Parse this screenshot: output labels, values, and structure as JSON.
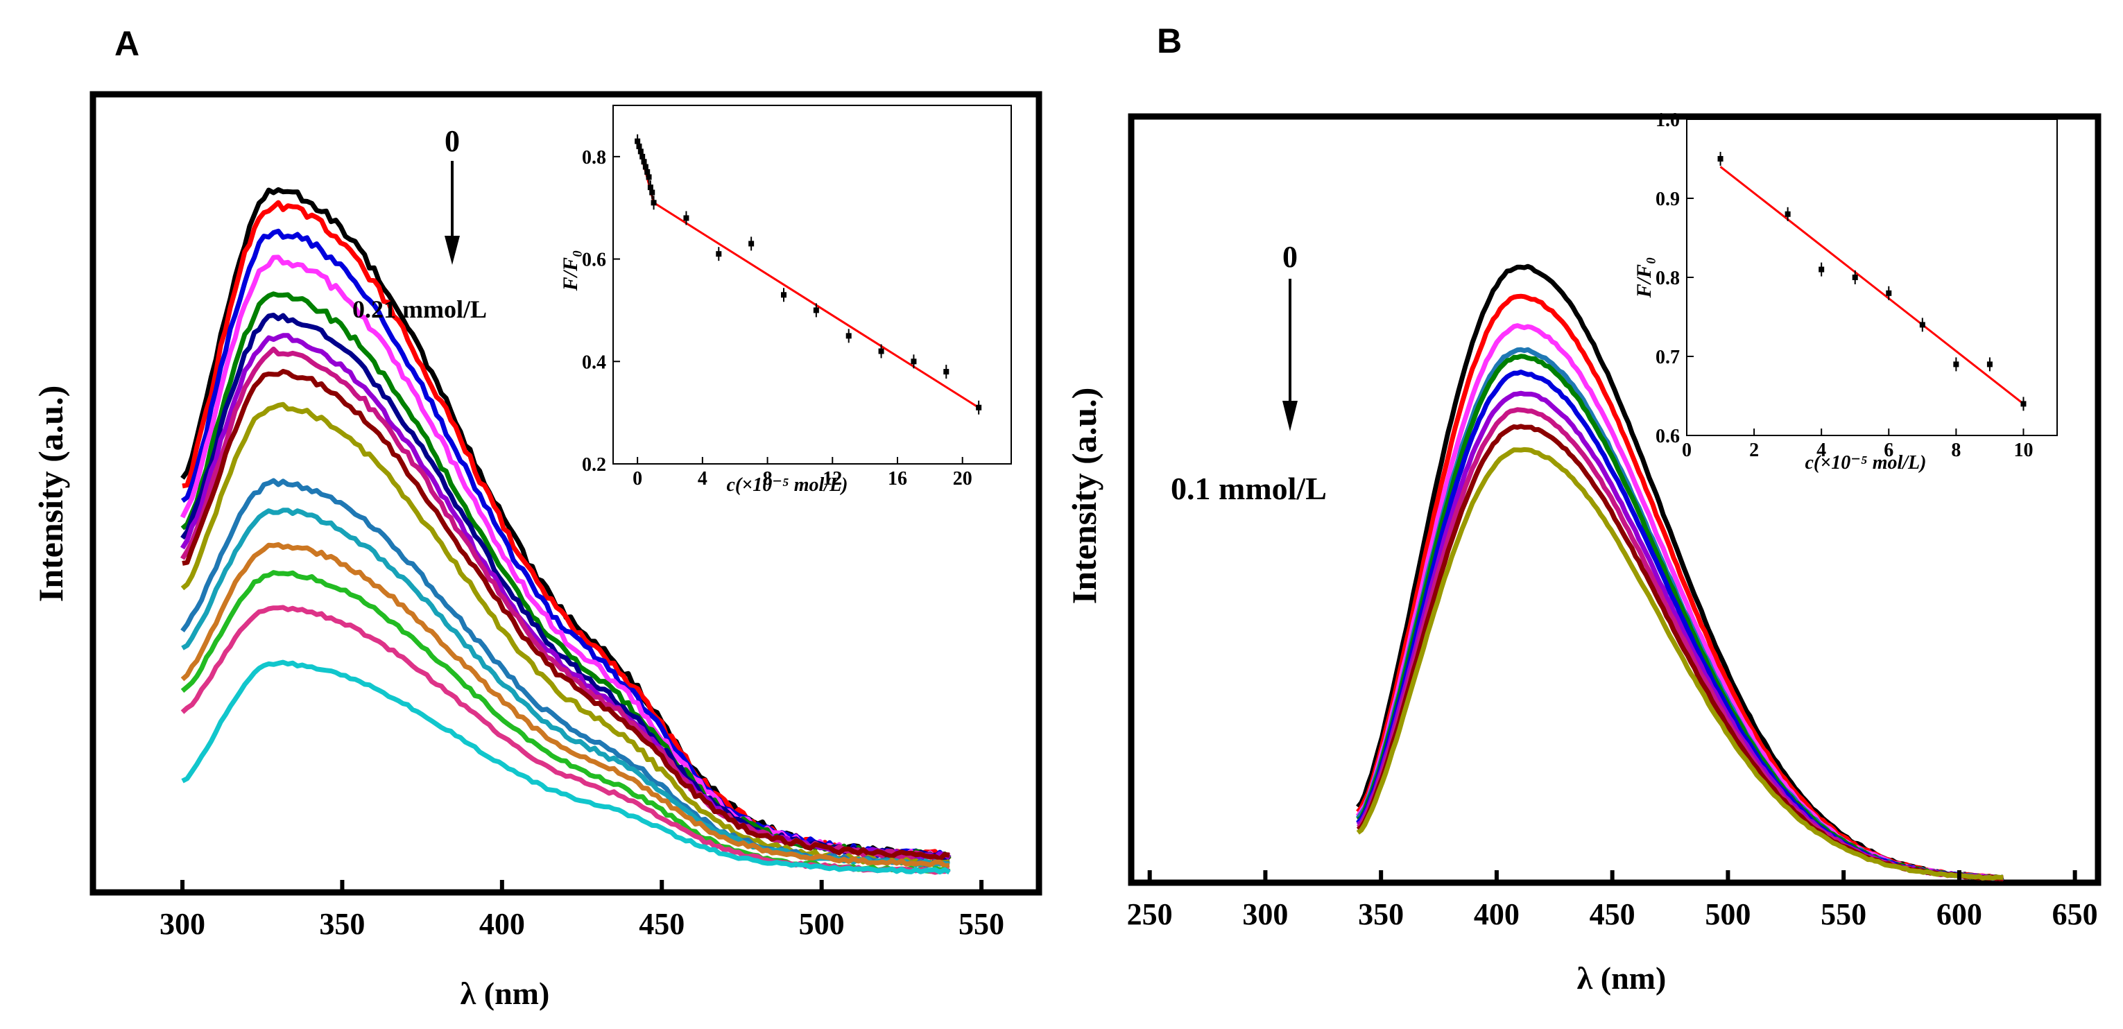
{
  "figure": {
    "panel_a_letter": "A",
    "panel_b_letter": "B"
  },
  "chart_data": [
    {
      "id": "A-main",
      "type": "line",
      "xlabel": "λ (nm)",
      "ylabel": "Intensity (a.u.)",
      "xlim": [
        272,
        568
      ],
      "ylim": [
        0,
        1.15
      ],
      "xticks": [
        300,
        350,
        400,
        450,
        500,
        550
      ],
      "yticks_visible": false,
      "annotation_top": "0",
      "annotation_bottom": "0.21 mmol/L",
      "x_range": [
        300,
        540
      ],
      "peak_x": 329,
      "series_colors": [
        "#000000",
        "#ff0000",
        "#0000dd",
        "#ff33ff",
        "#008000",
        "#00008b",
        "#9400d3",
        "#c71585",
        "#8b0000",
        "#9a9a00",
        "#1f78b4",
        "#17a2b8",
        "#cc7722",
        "#22bb22",
        "#dd3388",
        "#11c6cc"
      ],
      "series": [
        {
          "name": "c0",
          "start": 0.6,
          "peak": 1.01,
          "end": 0.05
        },
        {
          "name": "c1",
          "start": 0.58,
          "peak": 0.99,
          "end": 0.05
        },
        {
          "name": "c2",
          "start": 0.56,
          "peak": 0.95,
          "end": 0.05
        },
        {
          "name": "c3",
          "start": 0.54,
          "peak": 0.91,
          "end": 0.05
        },
        {
          "name": "c4",
          "start": 0.52,
          "peak": 0.86,
          "end": 0.05
        },
        {
          "name": "c5",
          "start": 0.51,
          "peak": 0.83,
          "end": 0.05
        },
        {
          "name": "c6",
          "start": 0.5,
          "peak": 0.8,
          "end": 0.05
        },
        {
          "name": "c7",
          "start": 0.48,
          "peak": 0.78,
          "end": 0.05
        },
        {
          "name": "c8",
          "start": 0.47,
          "peak": 0.75,
          "end": 0.05
        },
        {
          "name": "c9",
          "start": 0.44,
          "peak": 0.7,
          "end": 0.04
        },
        {
          "name": "c10",
          "start": 0.38,
          "peak": 0.59,
          "end": 0.04
        },
        {
          "name": "c11",
          "start": 0.35,
          "peak": 0.55,
          "end": 0.04
        },
        {
          "name": "c12",
          "start": 0.31,
          "peak": 0.5,
          "end": 0.04
        },
        {
          "name": "c13",
          "start": 0.29,
          "peak": 0.46,
          "end": 0.03
        },
        {
          "name": "c14",
          "start": 0.26,
          "peak": 0.41,
          "end": 0.03
        },
        {
          "name": "c15",
          "start": 0.16,
          "peak": 0.33,
          "end": 0.03
        }
      ]
    },
    {
      "id": "A-inset",
      "type": "scatter",
      "xlabel": "c(×10⁻⁵ mol/L)",
      "ylabel": "F/F₀",
      "xlim": [
        -1.5,
        23
      ],
      "ylim": [
        0.2,
        0.9
      ],
      "xticks": [
        0,
        4,
        8,
        12,
        16,
        20
      ],
      "yticks": [
        0.2,
        0.4,
        0.6,
        0.8
      ],
      "x": [
        0.0,
        0.1,
        0.2,
        0.3,
        0.4,
        0.5,
        0.6,
        0.7,
        0.8,
        0.9,
        1,
        3,
        5,
        7,
        9,
        11,
        13,
        15,
        17,
        19,
        21
      ],
      "y": [
        0.83,
        0.82,
        0.81,
        0.8,
        0.79,
        0.78,
        0.77,
        0.76,
        0.74,
        0.73,
        0.71,
        0.68,
        0.61,
        0.63,
        0.53,
        0.5,
        0.45,
        0.42,
        0.4,
        0.38,
        0.31
      ],
      "fit": [
        [
          0,
          0.83
        ],
        [
          1,
          0.71
        ],
        [
          21,
          0.31
        ]
      ]
    },
    {
      "id": "B-main",
      "type": "line",
      "xlabel": "λ (nm)",
      "ylabel": "Intensity (a.u.)",
      "xlim": [
        242,
        660
      ],
      "ylim": [
        0,
        1.15
      ],
      "xticks": [
        250,
        300,
        350,
        400,
        450,
        500,
        550,
        600,
        650
      ],
      "yticks_visible": false,
      "annotation_top": "0",
      "annotation_bottom": "0.1 mmol/L",
      "x_range": [
        340,
        620
      ],
      "peak_x": 410,
      "series_colors": [
        "#000000",
        "#ff0000",
        "#ff33ff",
        "#1f78b4",
        "#008000",
        "#0000dd",
        "#9400d3",
        "#c71585",
        "#8b0000",
        "#9a9a00"
      ],
      "series": [
        {
          "name": "c0",
          "start": 0.115,
          "peak": 0.925,
          "end": 0.005
        },
        {
          "name": "c1",
          "start": 0.105,
          "peak": 0.88,
          "end": 0.005
        },
        {
          "name": "c2",
          "start": 0.1,
          "peak": 0.835,
          "end": 0.005
        },
        {
          "name": "c3",
          "start": 0.097,
          "peak": 0.8,
          "end": 0.005
        },
        {
          "name": "c4",
          "start": 0.093,
          "peak": 0.79,
          "end": 0.005
        },
        {
          "name": "c5",
          "start": 0.09,
          "peak": 0.765,
          "end": 0.005
        },
        {
          "name": "c6",
          "start": 0.086,
          "peak": 0.735,
          "end": 0.005
        },
        {
          "name": "c7",
          "start": 0.082,
          "peak": 0.71,
          "end": 0.005
        },
        {
          "name": "c8",
          "start": 0.079,
          "peak": 0.685,
          "end": 0.005
        },
        {
          "name": "c9",
          "start": 0.075,
          "peak": 0.65,
          "end": 0.005
        }
      ]
    },
    {
      "id": "B-inset",
      "type": "scatter",
      "xlabel": "c(×10⁻⁵ mol/L)",
      "ylabel": "F/F₀",
      "xlim": [
        0,
        11
      ],
      "ylim": [
        0.6,
        1.0
      ],
      "xticks": [
        0,
        2,
        4,
        6,
        8,
        10
      ],
      "yticks": [
        0.6,
        0.7,
        0.8,
        0.9,
        1.0
      ],
      "x": [
        1,
        3,
        4,
        5,
        6,
        7,
        8,
        9,
        10
      ],
      "y": [
        0.95,
        0.88,
        0.81,
        0.8,
        0.78,
        0.74,
        0.69,
        0.69,
        0.64
      ],
      "fit": [
        [
          1,
          0.94
        ],
        [
          10,
          0.64
        ]
      ]
    }
  ]
}
